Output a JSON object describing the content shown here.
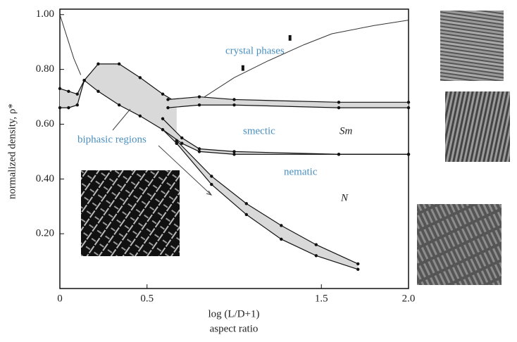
{
  "chart_data": {
    "type": "phase-diagram",
    "ylabel": "normalized density, ρ*",
    "xlabel": [
      "log (L/D+1)",
      "aspect ratio"
    ],
    "xlim": [
      0,
      2
    ],
    "ylim": [
      0,
      1.02
    ],
    "xticks": [
      0,
      0.5,
      1.5,
      {
        "value": 2,
        "label": "2.0"
      }
    ],
    "yticks": [
      {
        "value": 0.2,
        "label": "0.20"
      },
      {
        "value": 0.4,
        "label": "0.40"
      },
      {
        "value": 0.6,
        "label": "0.60"
      },
      {
        "value": 0.8,
        "label": "0.80"
      },
      {
        "value": 1.0,
        "label": "1.00"
      }
    ],
    "band_color": "#d9d9d9",
    "line_color": "#111111",
    "regions": [
      {
        "x": [
          0,
          0.05,
          0.1,
          0.14
        ],
        "upper": [
          0.73,
          0.72,
          0.71,
          0.76
        ],
        "lower": [
          0.66,
          0.66,
          0.67,
          0.76
        ]
      },
      {
        "x": [
          0.14,
          0.22,
          0.34,
          0.46,
          0.59,
          0.67
        ],
        "upper": [
          0.76,
          0.82,
          0.82,
          0.77,
          0.71,
          0.68
        ],
        "lower": [
          0.76,
          0.72,
          0.67,
          0.63,
          0.58,
          0.53
        ]
      },
      {
        "x": [
          0.62,
          0.8,
          1.0,
          1.6,
          2.0
        ],
        "upper": [
          0.69,
          0.7,
          0.69,
          0.68,
          0.68
        ],
        "lower": [
          0.66,
          0.67,
          0.67,
          0.66,
          0.66
        ]
      },
      {
        "x": [
          0.59,
          0.7,
          0.8,
          1.0,
          1.6,
          2.0
        ],
        "upper": [
          0.62,
          0.55,
          0.51,
          0.5,
          0.49,
          0.49
        ],
        "lower": [
          0.58,
          0.53,
          0.5,
          0.49,
          0.49,
          0.49
        ]
      },
      {
        "x": [
          0.67,
          0.87,
          1.07,
          1.27,
          1.47,
          1.71
        ],
        "upper": [
          0.54,
          0.41,
          0.31,
          0.23,
          0.16,
          0.09
        ],
        "lower": [
          0.53,
          0.38,
          0.27,
          0.18,
          0.12,
          0.07
        ]
      }
    ],
    "lines": [
      {
        "x": [
          0,
          0.04,
          0.08,
          0.12
        ],
        "values": [
          1.0,
          0.92,
          0.84,
          0.78
        ]
      },
      {
        "x": [
          0.83,
          1.0,
          1.19,
          1.4,
          1.56,
          1.8,
          2.0
        ],
        "values": [
          0.7,
          0.77,
          0.83,
          0.89,
          0.93,
          0.96,
          0.98
        ]
      }
    ],
    "points": {
      "x": [
        1.05,
        1.05,
        1.32,
        1.32
      ],
      "values": [
        0.81,
        0.8,
        0.92,
        0.91
      ]
    },
    "annotations": [
      "crystal phases",
      "smectic",
      "Sm",
      "biphasic regions",
      "nematic",
      "N"
    ]
  }
}
